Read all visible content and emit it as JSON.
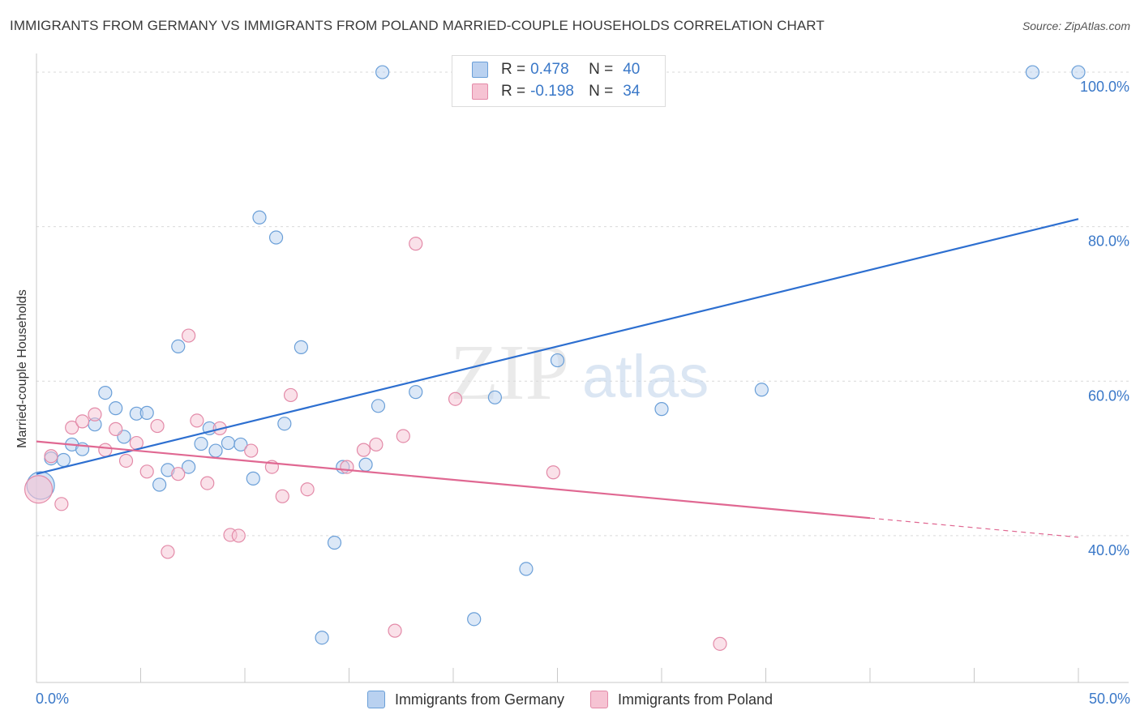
{
  "header": {
    "title": "IMMIGRANTS FROM GERMANY VS IMMIGRANTS FROM POLAND MARRIED-COUPLE HOUSEHOLDS CORRELATION CHART",
    "source": "Source: ZipAtlas.com"
  },
  "watermark": {
    "zip": "ZIP",
    "atlas": "atlas"
  },
  "legend": {
    "r_label": "R =",
    "n_label": "N =",
    "germany": {
      "r": "0.478",
      "n": "40"
    },
    "poland": {
      "r": "-0.198",
      "n": "34"
    }
  },
  "colors": {
    "germany_fill": "#b9d1f0",
    "germany_stroke": "#6a9fd8",
    "germany_line": "#2d6fd0",
    "poland_fill": "#f6c3d3",
    "poland_stroke": "#e38aa8",
    "poland_line": "#e06892",
    "axis_text": "#3a78c8",
    "grid": "#d9d9d9"
  },
  "chart_data": {
    "type": "scatter",
    "title": "IMMIGRANTS FROM GERMANY VS IMMIGRANTS FROM POLAND MARRIED-COUPLE HOUSEHOLDS CORRELATION CHART",
    "xlabel": "",
    "ylabel": "Married-couple Households",
    "xlim": [
      0,
      50
    ],
    "ylim": [
      21,
      102
    ],
    "x_tick_labels": {
      "min": "0.0%",
      "max": "50.0%"
    },
    "y_ticks": [
      {
        "value": 40,
        "label": "40.0%"
      },
      {
        "value": 60,
        "label": "60.0%"
      },
      {
        "value": 80,
        "label": "80.0%"
      },
      {
        "value": 100,
        "label": "100.0%"
      }
    ],
    "grid": true,
    "legend_position": "top-center",
    "series": [
      {
        "name": "Immigrants from Germany",
        "color_key": "germany",
        "r": 0.478,
        "n": 40,
        "trend": {
          "x": [
            0,
            50
          ],
          "y": [
            48.0,
            81.0
          ],
          "dashed_from": null
        },
        "points": [
          [
            0.2,
            46.5,
            "big"
          ],
          [
            0.7,
            50.0
          ],
          [
            1.3,
            49.8
          ],
          [
            1.7,
            51.8
          ],
          [
            2.2,
            51.2
          ],
          [
            2.8,
            54.4
          ],
          [
            3.3,
            58.5
          ],
          [
            3.8,
            56.5
          ],
          [
            4.2,
            52.8
          ],
          [
            4.8,
            55.8
          ],
          [
            5.3,
            55.9
          ],
          [
            5.9,
            46.6
          ],
          [
            6.3,
            48.5
          ],
          [
            6.8,
            64.5
          ],
          [
            7.3,
            48.9
          ],
          [
            7.9,
            51.9
          ],
          [
            8.3,
            53.9
          ],
          [
            8.6,
            51.0
          ],
          [
            9.2,
            52.0
          ],
          [
            9.8,
            51.8
          ],
          [
            10.4,
            47.4
          ],
          [
            10.7,
            81.2
          ],
          [
            11.5,
            78.6
          ],
          [
            11.9,
            54.5
          ],
          [
            12.7,
            64.4
          ],
          [
            13.7,
            26.8
          ],
          [
            14.3,
            39.1
          ],
          [
            14.7,
            48.9
          ],
          [
            15.8,
            49.2
          ],
          [
            16.4,
            56.8
          ],
          [
            16.6,
            100.0
          ],
          [
            18.2,
            58.6
          ],
          [
            21.0,
            29.2
          ],
          [
            22.0,
            57.9
          ],
          [
            23.5,
            35.7
          ],
          [
            25.0,
            62.7
          ],
          [
            30.0,
            56.4
          ],
          [
            34.8,
            58.9
          ],
          [
            47.8,
            100.0
          ],
          [
            50.0,
            100.0
          ]
        ]
      },
      {
        "name": "Immigrants from Poland",
        "color_key": "poland",
        "r": -0.198,
        "n": 34,
        "trend": {
          "x": [
            0,
            50
          ],
          "y": [
            52.2,
            39.8
          ],
          "dashed_from": 40
        },
        "points": [
          [
            0.1,
            46.0,
            "big"
          ],
          [
            0.7,
            50.3
          ],
          [
            1.2,
            44.1
          ],
          [
            1.7,
            54.0
          ],
          [
            2.2,
            54.8
          ],
          [
            2.8,
            55.7
          ],
          [
            3.3,
            51.1
          ],
          [
            3.8,
            53.8
          ],
          [
            4.3,
            49.7
          ],
          [
            4.8,
            52.0
          ],
          [
            5.3,
            48.3
          ],
          [
            5.8,
            54.2
          ],
          [
            6.3,
            37.9
          ],
          [
            6.8,
            48.0
          ],
          [
            7.3,
            65.9
          ],
          [
            7.7,
            54.9
          ],
          [
            8.2,
            46.8
          ],
          [
            8.8,
            53.9
          ],
          [
            9.3,
            40.1
          ],
          [
            9.7,
            40.0
          ],
          [
            10.3,
            51.0
          ],
          [
            11.3,
            48.9
          ],
          [
            11.8,
            45.1
          ],
          [
            12.2,
            58.2
          ],
          [
            13.0,
            46.0
          ],
          [
            14.9,
            48.9
          ],
          [
            15.7,
            51.1
          ],
          [
            16.3,
            51.8
          ],
          [
            17.2,
            27.7
          ],
          [
            17.6,
            52.9
          ],
          [
            18.2,
            77.8
          ],
          [
            20.1,
            57.7
          ],
          [
            24.8,
            48.2
          ],
          [
            32.8,
            26.0
          ]
        ]
      }
    ]
  },
  "bottom_legend": [
    {
      "label": "Immigrants from Germany"
    },
    {
      "label": "Immigrants from Poland"
    }
  ]
}
